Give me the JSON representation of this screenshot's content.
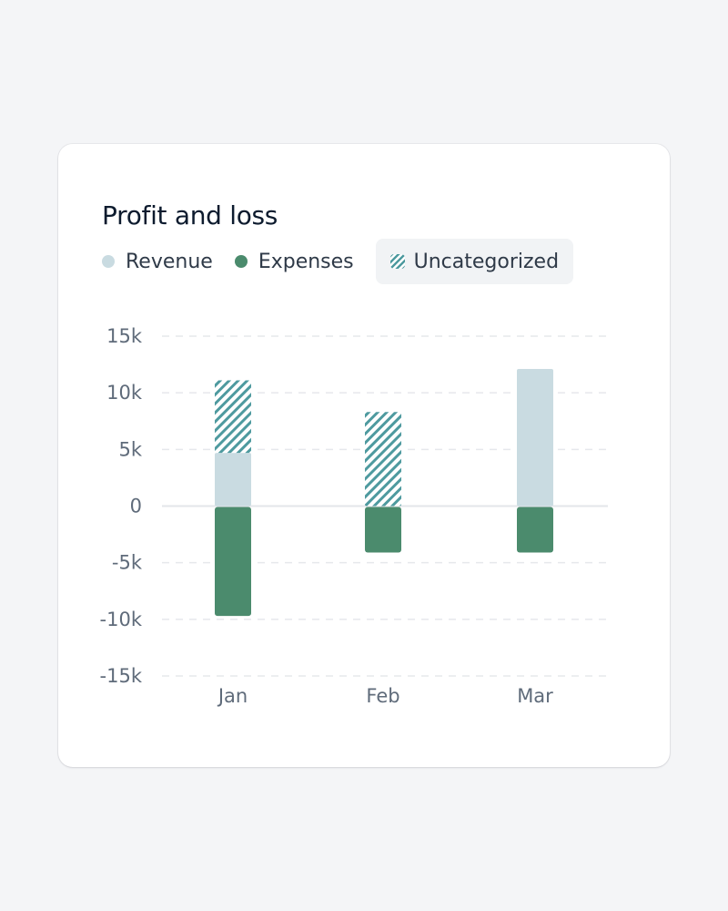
{
  "chart_data": {
    "type": "bar",
    "stacked": true,
    "title": "Profit and loss",
    "categories": [
      "Jan",
      "Feb",
      "Mar"
    ],
    "series": [
      {
        "name": "Revenue",
        "color": "#c9dbe1",
        "values": [
          4700,
          0,
          12100
        ]
      },
      {
        "name": "Uncategorized",
        "color": "#4e9a9f",
        "pattern": "diagonal-hatch",
        "values": [
          6400,
          8300,
          0
        ]
      },
      {
        "name": "Expenses",
        "color": "#4b8b6d",
        "values": [
          -9700,
          -4100,
          -4100
        ]
      }
    ],
    "ylim": [
      -15000,
      15000
    ],
    "yticks": [
      15000,
      10000,
      5000,
      0,
      -5000,
      -10000,
      -15000
    ],
    "ytick_labels": [
      "15k",
      "10k",
      "5k",
      "0",
      "-5k",
      "-10k",
      "-15k"
    ],
    "legend_active": "Uncategorized",
    "grid": true
  }
}
